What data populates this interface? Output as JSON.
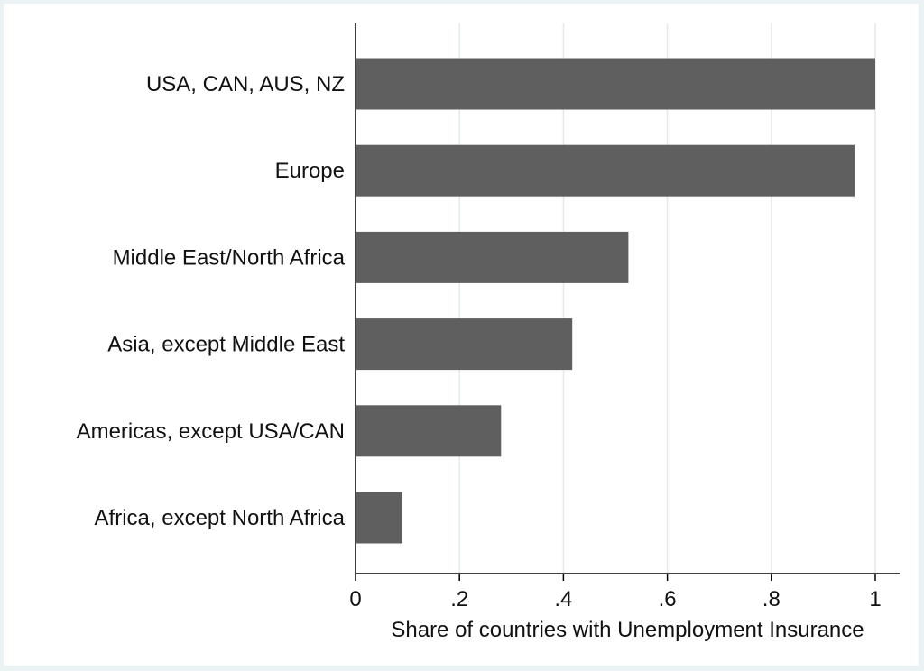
{
  "chart_data": {
    "type": "bar",
    "orientation": "horizontal",
    "categories": [
      "USA, CAN, AUS, NZ",
      "Europe",
      "Middle East/North Africa",
      "Asia, except Middle East",
      "Americas, except USA/CAN",
      "Africa, except North Africa"
    ],
    "values": [
      1.0,
      0.96,
      0.525,
      0.417,
      0.28,
      0.09
    ],
    "xlabel": "Share of countries with Unemployment Insurance",
    "ylabel": "",
    "title": "",
    "xlim": [
      0,
      1
    ],
    "xticks": [
      0,
      0.2,
      0.4,
      0.6,
      0.8,
      1
    ],
    "xtick_labels": [
      "0",
      ".2",
      ".4",
      ".6",
      ".8",
      "1"
    ],
    "grid": "vertical",
    "colors": {
      "bar": "#5f5f5f",
      "grid": "#e2ebec",
      "axis": "#000000",
      "background": "#ffffff",
      "border": "#eaf2f3"
    }
  }
}
